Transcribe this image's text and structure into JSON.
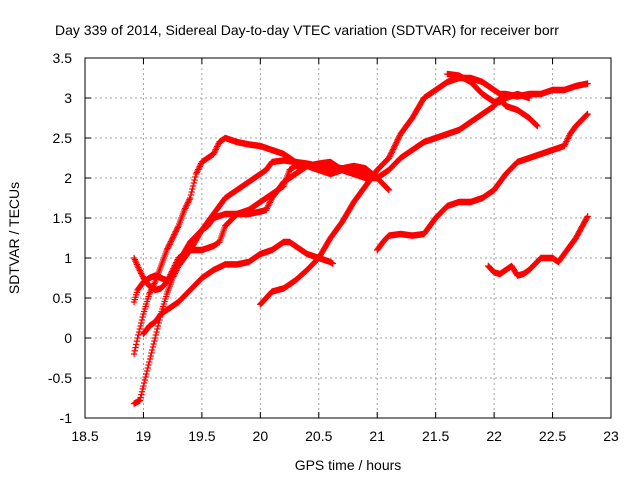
{
  "chart_data": {
    "type": "scatter",
    "title": "Day 339 of 2014, Sidereal Day-to-day VTEC variation (SDTVAR) for receiver borr",
    "xlabel": "GPS time / hours",
    "ylabel": "SDTVAR / TECUs",
    "xlim": [
      18.5,
      23
    ],
    "ylim": [
      -1,
      3.5
    ],
    "xticks": [
      "18.5",
      "19",
      "19.5",
      "20",
      "20.5",
      "21",
      "21.5",
      "22",
      "22.5",
      "23"
    ],
    "yticks": [
      "-1",
      "-0.5",
      "0",
      "0.5",
      "1",
      "1.5",
      "2",
      "2.5",
      "3",
      "3.5"
    ],
    "grid": true,
    "marker": "+",
    "color": "#ff0000",
    "series": [
      {
        "points": [
          [
            18.92,
            -0.82
          ],
          [
            18.97,
            -0.78
          ],
          [
            19.0,
            -0.6
          ],
          [
            19.05,
            -0.3
          ],
          [
            19.1,
            0.0
          ],
          [
            19.15,
            0.3
          ],
          [
            19.2,
            0.55
          ],
          [
            19.25,
            0.75
          ],
          [
            19.3,
            0.9
          ],
          [
            19.4,
            1.1
          ],
          [
            19.5,
            1.35
          ],
          [
            19.6,
            1.55
          ],
          [
            19.7,
            1.75
          ],
          [
            19.8,
            1.85
          ],
          [
            19.9,
            1.95
          ],
          [
            20.0,
            2.05
          ],
          [
            20.05,
            2.1
          ],
          [
            20.1,
            2.2
          ],
          [
            20.2,
            2.22
          ],
          [
            20.3,
            2.2
          ],
          [
            20.4,
            2.18
          ],
          [
            20.5,
            2.15
          ],
          [
            20.6,
            2.12
          ],
          [
            20.7,
            2.1
          ],
          [
            20.8,
            2.05
          ],
          [
            20.9,
            2.05
          ],
          [
            21.0,
            2.0
          ],
          [
            21.1,
            1.85
          ]
        ]
      },
      {
        "points": [
          [
            18.92,
            -0.2
          ],
          [
            18.95,
            0.0
          ],
          [
            19.0,
            0.3
          ],
          [
            19.05,
            0.55
          ],
          [
            19.1,
            0.7
          ],
          [
            19.15,
            0.9
          ],
          [
            19.2,
            1.1
          ],
          [
            19.3,
            1.4
          ],
          [
            19.35,
            1.6
          ],
          [
            19.4,
            1.75
          ],
          [
            19.45,
            2.05
          ],
          [
            19.5,
            2.2
          ],
          [
            19.55,
            2.25
          ],
          [
            19.6,
            2.3
          ],
          [
            19.65,
            2.45
          ],
          [
            19.7,
            2.5
          ],
          [
            19.8,
            2.45
          ],
          [
            19.9,
            2.42
          ],
          [
            20.0,
            2.4
          ],
          [
            20.1,
            2.35
          ],
          [
            20.2,
            2.3
          ],
          [
            20.3,
            2.2
          ],
          [
            20.4,
            2.15
          ],
          [
            20.5,
            2.1
          ],
          [
            20.6,
            2.05
          ],
          [
            20.7,
            2.1
          ],
          [
            20.8,
            2.1
          ],
          [
            20.9,
            2.08
          ],
          [
            21.0,
            2.0
          ]
        ]
      },
      {
        "points": [
          [
            18.92,
            0.45
          ],
          [
            18.95,
            0.6
          ],
          [
            19.0,
            0.7
          ],
          [
            19.05,
            0.75
          ],
          [
            19.1,
            0.78
          ],
          [
            19.15,
            0.75
          ],
          [
            19.2,
            0.72
          ],
          [
            19.25,
            0.8
          ],
          [
            19.3,
            0.95
          ],
          [
            19.4,
            1.2
          ],
          [
            19.5,
            1.35
          ],
          [
            19.55,
            1.4
          ],
          [
            19.6,
            1.5
          ],
          [
            19.7,
            1.55
          ],
          [
            19.8,
            1.55
          ],
          [
            19.9,
            1.55
          ],
          [
            20.0,
            1.58
          ],
          [
            20.05,
            1.6
          ],
          [
            20.1,
            1.75
          ],
          [
            20.2,
            1.95
          ],
          [
            20.3,
            2.05
          ],
          [
            20.4,
            2.15
          ],
          [
            20.5,
            2.18
          ],
          [
            20.6,
            2.2
          ],
          [
            20.7,
            2.1
          ],
          [
            20.8,
            2.05
          ],
          [
            20.9,
            2.0
          ],
          [
            21.0,
            2.0
          ]
        ]
      },
      {
        "points": [
          [
            18.92,
            1.0
          ],
          [
            18.95,
            0.9
          ],
          [
            19.0,
            0.75
          ],
          [
            19.05,
            0.65
          ],
          [
            19.1,
            0.6
          ],
          [
            19.15,
            0.62
          ],
          [
            19.2,
            0.7
          ],
          [
            19.25,
            0.85
          ],
          [
            19.3,
            1.0
          ],
          [
            19.4,
            1.1
          ],
          [
            19.5,
            1.1
          ],
          [
            19.6,
            1.15
          ],
          [
            19.65,
            1.2
          ],
          [
            19.7,
            1.4
          ],
          [
            19.8,
            1.55
          ],
          [
            19.9,
            1.6
          ],
          [
            20.0,
            1.7
          ],
          [
            20.1,
            1.8
          ],
          [
            20.2,
            1.9
          ],
          [
            20.25,
            2.1
          ],
          [
            20.3,
            2.15
          ],
          [
            20.4,
            2.15
          ],
          [
            20.5,
            2.15
          ],
          [
            20.6,
            2.15
          ],
          [
            20.7,
            2.12
          ],
          [
            20.8,
            2.15
          ],
          [
            20.9,
            2.12
          ],
          [
            21.0,
            2.0
          ]
        ]
      },
      {
        "points": [
          [
            19.0,
            0.05
          ],
          [
            19.05,
            0.15
          ],
          [
            19.1,
            0.2
          ],
          [
            19.15,
            0.3
          ],
          [
            19.2,
            0.35
          ],
          [
            19.3,
            0.45
          ],
          [
            19.4,
            0.6
          ],
          [
            19.5,
            0.75
          ],
          [
            19.6,
            0.85
          ],
          [
            19.7,
            0.92
          ],
          [
            19.8,
            0.92
          ],
          [
            19.9,
            0.95
          ],
          [
            20.0,
            1.05
          ],
          [
            20.1,
            1.1
          ],
          [
            20.2,
            1.2
          ],
          [
            20.25,
            1.2
          ],
          [
            20.3,
            1.15
          ],
          [
            20.4,
            1.05
          ],
          [
            20.5,
            1.0
          ],
          [
            20.6,
            0.95
          ],
          [
            20.62,
            0.93
          ]
        ]
      },
      {
        "points": [
          [
            20.0,
            0.42
          ],
          [
            20.05,
            0.5
          ],
          [
            20.1,
            0.58
          ],
          [
            20.2,
            0.62
          ],
          [
            20.3,
            0.72
          ],
          [
            20.4,
            0.85
          ],
          [
            20.5,
            1.0
          ],
          [
            20.6,
            1.25
          ],
          [
            20.7,
            1.45
          ],
          [
            20.8,
            1.7
          ],
          [
            20.9,
            1.9
          ],
          [
            21.0,
            2.1
          ],
          [
            21.1,
            2.25
          ],
          [
            21.2,
            2.55
          ],
          [
            21.3,
            2.75
          ],
          [
            21.4,
            3.0
          ],
          [
            21.5,
            3.1
          ],
          [
            21.6,
            3.2
          ],
          [
            21.7,
            3.25
          ],
          [
            21.8,
            3.25
          ],
          [
            21.9,
            3.2
          ],
          [
            22.0,
            3.1
          ],
          [
            22.05,
            3.05
          ],
          [
            22.1,
            3.05
          ],
          [
            22.2,
            3.02
          ],
          [
            22.3,
            3.05
          ],
          [
            22.4,
            3.05
          ],
          [
            22.5,
            3.1
          ],
          [
            22.6,
            3.1
          ],
          [
            22.7,
            3.15
          ],
          [
            22.8,
            3.18
          ]
        ]
      },
      {
        "points": [
          [
            21.0,
            1.1
          ],
          [
            21.05,
            1.2
          ],
          [
            21.1,
            1.28
          ],
          [
            21.2,
            1.3
          ],
          [
            21.3,
            1.28
          ],
          [
            21.4,
            1.3
          ],
          [
            21.5,
            1.5
          ],
          [
            21.6,
            1.65
          ],
          [
            21.7,
            1.7
          ],
          [
            21.8,
            1.7
          ],
          [
            21.9,
            1.75
          ],
          [
            22.0,
            1.85
          ],
          [
            22.1,
            2.05
          ],
          [
            22.2,
            2.2
          ],
          [
            22.3,
            2.25
          ],
          [
            22.4,
            2.3
          ],
          [
            22.5,
            2.35
          ],
          [
            22.6,
            2.4
          ],
          [
            22.65,
            2.55
          ],
          [
            22.7,
            2.65
          ],
          [
            22.8,
            2.8
          ]
        ]
      },
      {
        "points": [
          [
            21.0,
            2.0
          ],
          [
            21.1,
            2.1
          ],
          [
            21.2,
            2.25
          ],
          [
            21.3,
            2.35
          ],
          [
            21.4,
            2.45
          ],
          [
            21.5,
            2.5
          ],
          [
            21.6,
            2.55
          ],
          [
            21.7,
            2.6
          ],
          [
            21.8,
            2.7
          ],
          [
            21.9,
            2.8
          ],
          [
            22.0,
            2.9
          ],
          [
            22.05,
            3.0
          ],
          [
            22.1,
            2.9
          ],
          [
            22.2,
            2.85
          ],
          [
            22.3,
            2.75
          ],
          [
            22.37,
            2.65
          ]
        ]
      },
      {
        "points": [
          [
            21.6,
            3.3
          ],
          [
            21.7,
            3.28
          ],
          [
            21.8,
            3.2
          ],
          [
            21.9,
            3.05
          ],
          [
            22.0,
            2.95
          ],
          [
            22.05,
            2.95
          ],
          [
            22.1,
            3.0
          ],
          [
            22.2,
            3.05
          ],
          [
            22.3,
            3.0
          ]
        ]
      },
      {
        "points": [
          [
            21.95,
            0.9
          ],
          [
            22.0,
            0.82
          ],
          [
            22.05,
            0.8
          ],
          [
            22.1,
            0.85
          ],
          [
            22.15,
            0.9
          ],
          [
            22.2,
            0.78
          ],
          [
            22.25,
            0.8
          ],
          [
            22.3,
            0.85
          ],
          [
            22.4,
            1.0
          ],
          [
            22.5,
            1.0
          ],
          [
            22.55,
            0.95
          ],
          [
            22.6,
            1.05
          ],
          [
            22.7,
            1.25
          ],
          [
            22.8,
            1.52
          ]
        ]
      }
    ]
  }
}
